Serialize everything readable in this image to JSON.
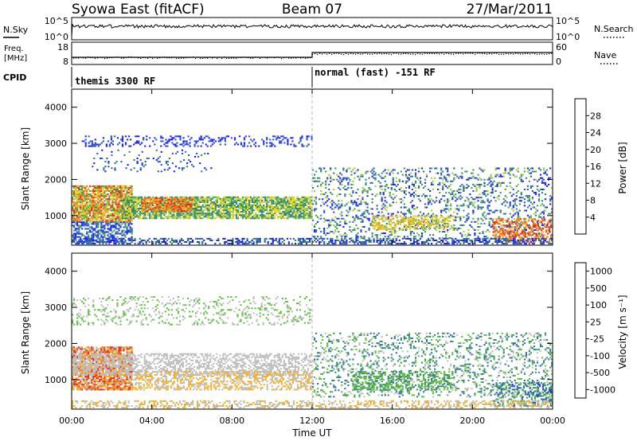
{
  "header": {
    "title": "Syowa East (fitACF)",
    "beam": "Beam 07",
    "date": "27/Mar/2011"
  },
  "top_panels": {
    "nsky_label": "N.Sky",
    "nsearch_label": "N.Search",
    "nsky_ticks": [
      "10^5",
      "10^0"
    ],
    "nsearch_ticks": [
      "10^5",
      "10^0"
    ],
    "freq_label_line1": "Freq.",
    "freq_label_line2": "[MHz]",
    "freq_ticks": [
      "18",
      "8"
    ],
    "nave_label": "Nave",
    "nave_ticks": [
      "60",
      "0"
    ],
    "cpid_label": "CPID",
    "cpid_segments": [
      {
        "label": "themis 3300 RF",
        "start_hour": 0,
        "end_hour": 12
      },
      {
        "label": "normal (fast) -151 RF",
        "start_hour": 12,
        "end_hour": 24
      }
    ]
  },
  "chart_data": [
    {
      "type": "heatmap",
      "parameter": "power",
      "ylabel": "Slant Range [km]",
      "yticks": [
        "1000",
        "2000",
        "3000",
        "4000"
      ],
      "ylim": [
        180,
        4500
      ],
      "xlim": [
        0,
        24
      ],
      "colorbar_label": "Power [dB]",
      "colorbar_ticks": [
        "4",
        "8",
        "12",
        "16",
        "20",
        "24",
        "28"
      ],
      "colorbar_range": [
        0,
        32
      ],
      "colors": [
        "#1a1aff",
        "#2b55c8",
        "#2f7f7a",
        "#3aa060",
        "#9fcf3a",
        "#f2d21a",
        "#f5a020",
        "#ee6a1a",
        "#e02a14"
      ]
    },
    {
      "type": "heatmap",
      "parameter": "velocity",
      "ylabel": "Slant Range [km]",
      "yticks": [
        "1000",
        "2000",
        "3000",
        "4000"
      ],
      "ylim": [
        180,
        4500
      ],
      "xlim": [
        0,
        24
      ],
      "colorbar_label": "Velocity [m s⁻¹]",
      "colorbar_ticks": [
        "1000",
        "500",
        "100",
        "25",
        "-25",
        "-100",
        "-500",
        "-1000"
      ],
      "colors": [
        "#1f3fd0",
        "#2d6fa8",
        "#3b8f6e",
        "#5ec13e",
        "#bfbfbf",
        "#f5b020",
        "#f07a18",
        "#e0301a"
      ]
    }
  ],
  "x_axis": {
    "ticks": [
      "00:00",
      "04:00",
      "08:00",
      "12:00",
      "16:00",
      "20:00",
      "00:00"
    ],
    "label": "Time UT"
  }
}
